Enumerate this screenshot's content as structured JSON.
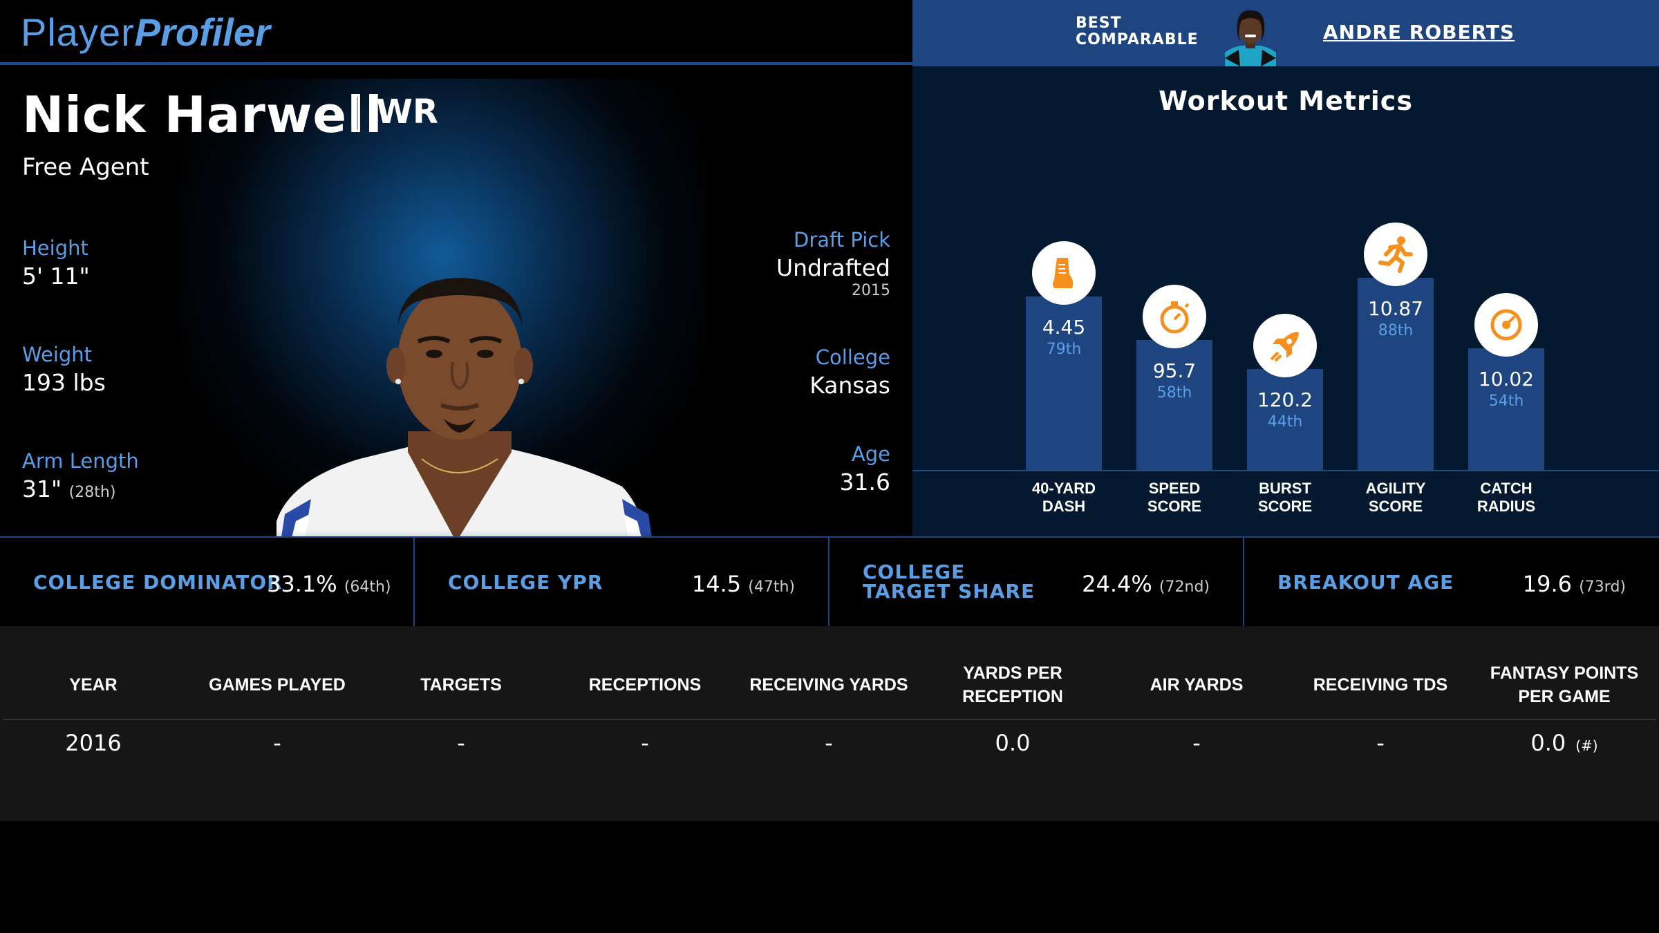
{
  "header": {
    "logo_part1": "Player",
    "logo_part2": "Profiler",
    "best_comparable_label": "BEST\nCOMPARABLE",
    "best_comparable_name": "ANDRE ROBERTS"
  },
  "player": {
    "name": "Nick Harwell",
    "position": "WR",
    "team": "Free Agent",
    "height_label": "Height",
    "height_value": "5' 11\"",
    "weight_label": "Weight",
    "weight_value": "193 lbs",
    "arm_label": "Arm Length",
    "arm_value": "31\"",
    "arm_pct": "(28th)",
    "draft_label": "Draft Pick",
    "draft_value": "Undrafted",
    "draft_year": "2015",
    "college_label": "College",
    "college_value": "Kansas",
    "age_label": "Age",
    "age_value": "31.6"
  },
  "workout": {
    "title": "Workout Metrics",
    "metrics": [
      {
        "label": "40-YARD\nDASH",
        "value": "4.45",
        "percentile": "79th",
        "pct_num": 79,
        "icon": "shoe-icon"
      },
      {
        "label": "SPEED\nSCORE",
        "value": "95.7",
        "percentile": "58th",
        "pct_num": 58,
        "icon": "stopwatch-icon"
      },
      {
        "label": "BURST\nSCORE",
        "value": "120.2",
        "percentile": "44th",
        "pct_num": 44,
        "icon": "rocket-icon"
      },
      {
        "label": "AGILITY\nSCORE",
        "value": "10.87",
        "percentile": "88th",
        "pct_num": 88,
        "icon": "runner-icon"
      },
      {
        "label": "CATCH\nRADIUS",
        "value": "10.02",
        "percentile": "54th",
        "pct_num": 54,
        "icon": "target-icon"
      }
    ]
  },
  "college_stats": [
    {
      "label": "COLLEGE DOMINATOR",
      "value": "33.1%",
      "pct": "(64th)"
    },
    {
      "label": "COLLEGE YPR",
      "value": "14.5",
      "pct": "(47th)"
    },
    {
      "label": "COLLEGE TARGET SHARE",
      "value": "24.4%",
      "pct": "(72nd)"
    },
    {
      "label": "BREAKOUT AGE",
      "value": "19.6",
      "pct": "(73rd)"
    }
  ],
  "season_table": {
    "headers": [
      "YEAR",
      "GAMES PLAYED",
      "TARGETS",
      "RECEPTIONS",
      "RECEIVING YARDS",
      "YARDS PER RECEPTION",
      "AIR YARDS",
      "RECEIVING TDS",
      "FANTASY POINTS PER GAME"
    ],
    "rows": [
      [
        "2016",
        "-",
        "-",
        "-",
        "-",
        "0.0",
        "-",
        "-",
        "0.0"
      ]
    ],
    "rank_marker": "(#)"
  },
  "colors": {
    "accent_blue": "#5a9ee6",
    "bar_blue": "#1f4580",
    "icon_orange": "#f5901e"
  }
}
